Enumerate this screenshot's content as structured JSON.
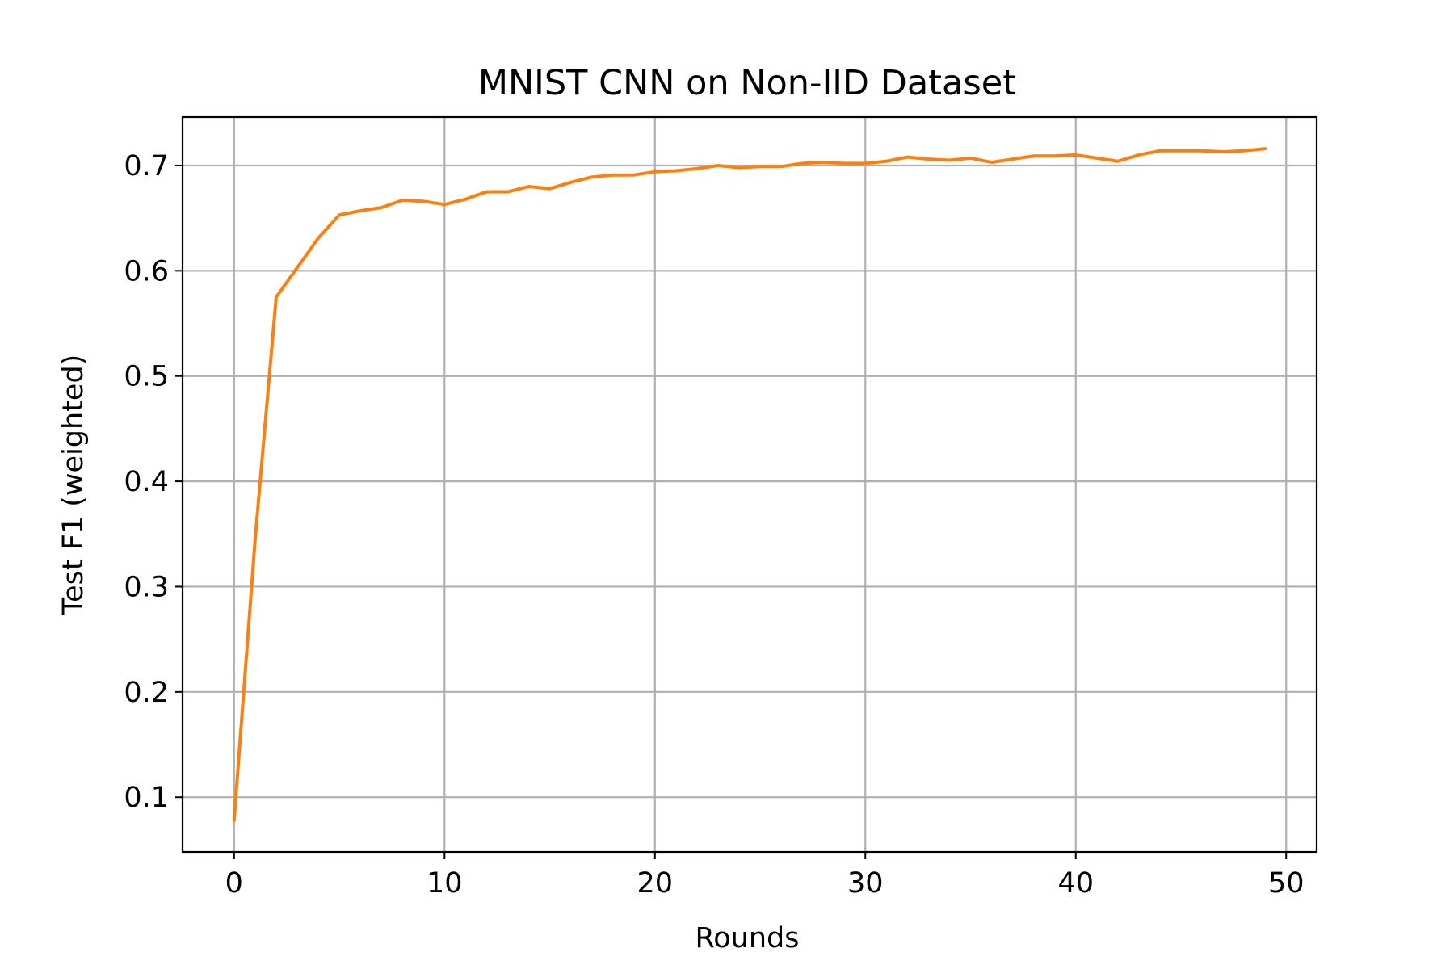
{
  "chart_data": {
    "type": "line",
    "title": "MNIST CNN on Non-IID Dataset",
    "xlabel": "Rounds",
    "ylabel": "Test F1 (weighted)",
    "xlim": [
      -2.45,
      51.45
    ],
    "ylim": [
      0.048,
      0.746
    ],
    "xticks": [
      0,
      10,
      20,
      30,
      40,
      50
    ],
    "yticks": [
      0.1,
      0.2,
      0.3,
      0.4,
      0.5,
      0.6,
      0.7
    ],
    "grid": true,
    "legend": "none",
    "series": [
      {
        "color": "#ff7f0e",
        "x": [
          0,
          1,
          2,
          3,
          4,
          5,
          6,
          7,
          8,
          9,
          10,
          11,
          12,
          13,
          14,
          15,
          16,
          17,
          18,
          19,
          20,
          21,
          22,
          23,
          24,
          25,
          26,
          27,
          28,
          29,
          30,
          31,
          32,
          33,
          34,
          35,
          36,
          37,
          38,
          39,
          40,
          41,
          42,
          43,
          44,
          45,
          46,
          47,
          48,
          49
        ],
        "y": [
          0.078,
          0.345,
          0.575,
          0.603,
          0.631,
          0.653,
          0.657,
          0.66,
          0.667,
          0.666,
          0.663,
          0.668,
          0.675,
          0.675,
          0.68,
          0.678,
          0.684,
          0.689,
          0.691,
          0.691,
          0.694,
          0.695,
          0.697,
          0.7,
          0.698,
          0.699,
          0.699,
          0.702,
          0.703,
          0.702,
          0.702,
          0.704,
          0.708,
          0.706,
          0.705,
          0.707,
          0.703,
          0.706,
          0.709,
          0.709,
          0.71,
          0.707,
          0.704,
          0.71,
          0.714,
          0.714,
          0.714,
          0.713,
          0.714,
          0.716
        ]
      }
    ]
  }
}
